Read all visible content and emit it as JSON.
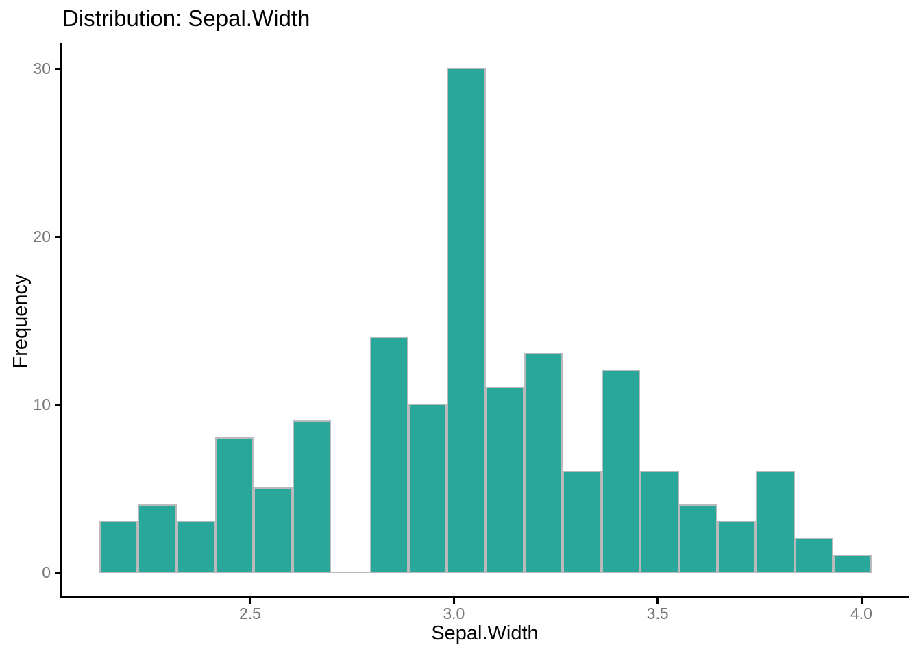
{
  "title": "Distribution: Sepal.Width",
  "axes": {
    "x": {
      "label": "Sepal.Width",
      "ticks": [
        {
          "value": 2.5,
          "label": "2.5"
        },
        {
          "value": 3.0,
          "label": "3.0"
        },
        {
          "value": 3.5,
          "label": "3.5"
        },
        {
          "value": 4.0,
          "label": "4.0"
        }
      ]
    },
    "y": {
      "label": "Frequency",
      "ticks": [
        {
          "value": 0,
          "label": "0"
        },
        {
          "value": 10,
          "label": "10"
        },
        {
          "value": 20,
          "label": "20"
        },
        {
          "value": 30,
          "label": "30"
        }
      ]
    }
  },
  "chart_data": {
    "type": "bar",
    "subtype": "histogram",
    "title": "Distribution: Sepal.Width",
    "xlabel": "Sepal.Width",
    "ylabel": "Frequency",
    "bin_start": 2.13,
    "bin_width": 0.0948,
    "counts": [
      3,
      4,
      3,
      8,
      5,
      9,
      0,
      14,
      10,
      30,
      11,
      13,
      6,
      12,
      6,
      4,
      3,
      6,
      2,
      1
    ],
    "x_ticks": [
      2.5,
      3.0,
      3.5,
      4.0
    ],
    "y_ticks": [
      0,
      10,
      20,
      30
    ],
    "xlim": [
      2.04,
      4.12
    ],
    "ylim": [
      0,
      31.5
    ],
    "grid": false,
    "legend": false
  },
  "colors": {
    "bar_fill": "#2AA79B",
    "bar_stroke": "#BABABA",
    "axis_line": "#000000",
    "tick_label_color": "#757575",
    "text": "#000000",
    "background": "#FFFFFF"
  }
}
